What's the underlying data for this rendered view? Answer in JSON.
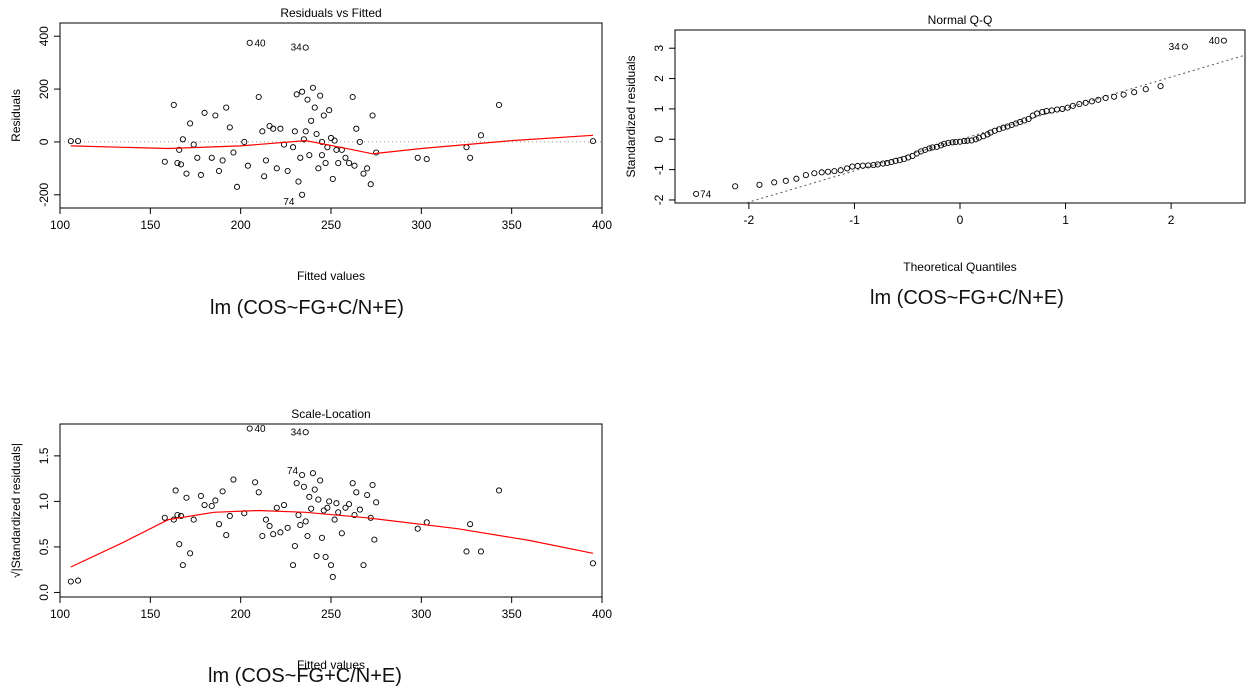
{
  "captions": [
    "lm (COS~FG+C/N+E)",
    "lm (COS~FG+C/N+E)",
    "lm (COS~FG+C/N+E)"
  ],
  "chart_data": [
    {
      "type": "scatter",
      "title": "Residuals vs Fitted",
      "xlabel": "Fitted values",
      "ylabel": "Residuals",
      "xlim": [
        100,
        400
      ],
      "ylim": [
        -250,
        450
      ],
      "xticks": [
        100,
        150,
        200,
        250,
        300,
        350,
        400
      ],
      "yticks": [
        -200,
        0,
        200,
        400
      ],
      "reference_line": {
        "y": 0,
        "style": "dotted",
        "color": "#999999"
      },
      "smooth_color": "#ff0000",
      "point_labels": [
        {
          "text": "40",
          "x": 206,
          "y": 375
        },
        {
          "text": "34",
          "x": 236,
          "y": 360
        },
        {
          "text": "74",
          "x": 232,
          "y": -225
        }
      ],
      "points": [
        [
          106,
          3
        ],
        [
          110,
          3
        ],
        [
          158,
          -75
        ],
        [
          163,
          140
        ],
        [
          165,
          -80
        ],
        [
          166,
          -30
        ],
        [
          167,
          -85
        ],
        [
          168,
          10
        ],
        [
          170,
          -120
        ],
        [
          172,
          70
        ],
        [
          174,
          -10
        ],
        [
          176,
          -60
        ],
        [
          178,
          -125
        ],
        [
          180,
          110
        ],
        [
          184,
          -60
        ],
        [
          186,
          100
        ],
        [
          188,
          -110
        ],
        [
          190,
          -70
        ],
        [
          192,
          130
        ],
        [
          194,
          55
        ],
        [
          196,
          -40
        ],
        [
          198,
          -170
        ],
        [
          202,
          0
        ],
        [
          204,
          -90
        ],
        [
          205,
          375
        ],
        [
          210,
          170
        ],
        [
          212,
          40
        ],
        [
          213,
          -130
        ],
        [
          214,
          -70
        ],
        [
          216,
          60
        ],
        [
          218,
          50
        ],
        [
          220,
          -100
        ],
        [
          222,
          50
        ],
        [
          224,
          -10
        ],
        [
          226,
          -110
        ],
        [
          229,
          -20
        ],
        [
          230,
          40
        ],
        [
          231,
          180
        ],
        [
          232,
          -150
        ],
        [
          233,
          -60
        ],
        [
          234,
          190
        ],
        [
          235,
          10
        ],
        [
          236,
          40
        ],
        [
          237,
          160
        ],
        [
          238,
          -50
        ],
        [
          239,
          80
        ],
        [
          240,
          205
        ],
        [
          241,
          130
        ],
        [
          242,
          30
        ],
        [
          243,
          -100
        ],
        [
          244,
          175
        ],
        [
          245,
          0
        ],
        [
          246,
          100
        ],
        [
          247,
          -80
        ],
        [
          248,
          -20
        ],
        [
          249,
          120
        ],
        [
          250,
          15
        ],
        [
          251,
          -140
        ],
        [
          252,
          5
        ],
        [
          253,
          -30
        ],
        [
          254,
          -80
        ],
        [
          256,
          -30
        ],
        [
          258,
          -60
        ],
        [
          260,
          -80
        ],
        [
          262,
          170
        ],
        [
          263,
          -90
        ],
        [
          264,
          50
        ],
        [
          266,
          0
        ],
        [
          268,
          -120
        ],
        [
          270,
          -100
        ],
        [
          272,
          -160
        ],
        [
          273,
          100
        ],
        [
          275,
          -40
        ],
        [
          298,
          -60
        ],
        [
          303,
          -65
        ],
        [
          325,
          -20
        ],
        [
          327,
          -60
        ],
        [
          333,
          25
        ],
        [
          343,
          140
        ],
        [
          395,
          3
        ],
        [
          236,
          357
        ],
        [
          234,
          -200
        ],
        [
          245,
          -50
        ]
      ],
      "smooth": [
        [
          106,
          -15
        ],
        [
          160,
          -25
        ],
        [
          200,
          -15
        ],
        [
          236,
          5
        ],
        [
          255,
          -20
        ],
        [
          273,
          -45
        ],
        [
          300,
          -25
        ],
        [
          350,
          5
        ],
        [
          395,
          25
        ]
      ]
    },
    {
      "type": "scatter",
      "title": "Normal Q-Q",
      "xlabel": "Theoretical Quantiles",
      "ylabel": "Standardized residuals",
      "xlim": [
        -2.7,
        2.7
      ],
      "ylim": [
        -2.1,
        3.6
      ],
      "xticks": [
        -2,
        -1,
        0,
        1,
        2
      ],
      "yticks": [
        -2,
        -1,
        0,
        1,
        2,
        3
      ],
      "reference_line": {
        "slope": 1.03,
        "intercept": -0.01,
        "style": "dotted",
        "color": "#555555"
      },
      "point_labels": [
        {
          "text": "74",
          "x": -2.5,
          "y": -1.8
        },
        {
          "text": "34",
          "x": 2.12,
          "y": 3.05
        },
        {
          "text": "40",
          "x": 2.5,
          "y": 3.25
        }
      ],
      "points": [
        [
          -2.5,
          -1.8
        ],
        [
          -2.13,
          -1.55
        ],
        [
          -1.9,
          -1.5
        ],
        [
          -1.76,
          -1.42
        ],
        [
          -1.65,
          -1.37
        ],
        [
          -1.55,
          -1.3
        ],
        [
          -1.46,
          -1.18
        ],
        [
          -1.38,
          -1.12
        ],
        [
          -1.31,
          -1.09
        ],
        [
          -1.25,
          -1.07
        ],
        [
          -1.19,
          -1.05
        ],
        [
          -1.13,
          -1.02
        ],
        [
          -1.07,
          -0.96
        ],
        [
          -1.02,
          -0.9
        ],
        [
          -0.97,
          -0.88
        ],
        [
          -0.92,
          -0.87
        ],
        [
          -0.87,
          -0.86
        ],
        [
          -0.82,
          -0.85
        ],
        [
          -0.78,
          -0.83
        ],
        [
          -0.73,
          -0.8
        ],
        [
          -0.69,
          -0.78
        ],
        [
          -0.65,
          -0.75
        ],
        [
          -0.61,
          -0.71
        ],
        [
          -0.57,
          -0.69
        ],
        [
          -0.53,
          -0.65
        ],
        [
          -0.49,
          -0.6
        ],
        [
          -0.45,
          -0.55
        ],
        [
          -0.41,
          -0.47
        ],
        [
          -0.37,
          -0.4
        ],
        [
          -0.33,
          -0.35
        ],
        [
          -0.29,
          -0.3
        ],
        [
          -0.26,
          -0.27
        ],
        [
          -0.22,
          -0.25
        ],
        [
          -0.18,
          -0.2
        ],
        [
          -0.15,
          -0.15
        ],
        [
          -0.11,
          -0.12
        ],
        [
          -0.07,
          -0.1
        ],
        [
          -0.04,
          -0.09
        ],
        [
          0.0,
          -0.08
        ],
        [
          0.04,
          -0.06
        ],
        [
          0.07,
          -0.05
        ],
        [
          0.11,
          -0.04
        ],
        [
          0.15,
          0.0
        ],
        [
          0.18,
          0.05
        ],
        [
          0.22,
          0.1
        ],
        [
          0.26,
          0.16
        ],
        [
          0.29,
          0.22
        ],
        [
          0.33,
          0.28
        ],
        [
          0.37,
          0.33
        ],
        [
          0.41,
          0.38
        ],
        [
          0.45,
          0.42
        ],
        [
          0.49,
          0.47
        ],
        [
          0.53,
          0.52
        ],
        [
          0.57,
          0.57
        ],
        [
          0.61,
          0.62
        ],
        [
          0.65,
          0.67
        ],
        [
          0.69,
          0.78
        ],
        [
          0.73,
          0.85
        ],
        [
          0.78,
          0.9
        ],
        [
          0.82,
          0.93
        ],
        [
          0.87,
          0.95
        ],
        [
          0.92,
          0.98
        ],
        [
          0.97,
          1.0
        ],
        [
          1.02,
          1.04
        ],
        [
          1.07,
          1.1
        ],
        [
          1.13,
          1.16
        ],
        [
          1.19,
          1.2
        ],
        [
          1.25,
          1.25
        ],
        [
          1.31,
          1.3
        ],
        [
          1.38,
          1.36
        ],
        [
          1.46,
          1.4
        ],
        [
          1.55,
          1.47
        ],
        [
          1.65,
          1.55
        ],
        [
          1.76,
          1.65
        ],
        [
          1.9,
          1.75
        ],
        [
          2.13,
          3.05
        ],
        [
          2.5,
          3.25
        ]
      ]
    },
    {
      "type": "scatter",
      "title": "Scale-Location",
      "xlabel": "Fitted values",
      "ylabel": "√|Standardized residuals|",
      "xlim": [
        100,
        400
      ],
      "ylim": [
        -0.05,
        1.85
      ],
      "xticks": [
        100,
        150,
        200,
        250,
        300,
        350,
        400
      ],
      "yticks": [
        0.0,
        0.5,
        1.0,
        1.5
      ],
      "smooth_color": "#ff0000",
      "point_labels": [
        {
          "text": "40",
          "x": 206,
          "y": 1.8
        },
        {
          "text": "34",
          "x": 236,
          "y": 1.76
        },
        {
          "text": "74",
          "x": 234,
          "y": 1.34
        }
      ],
      "points": [
        [
          106,
          0.12
        ],
        [
          110,
          0.13
        ],
        [
          158,
          0.82
        ],
        [
          163,
          0.8
        ],
        [
          164,
          1.12
        ],
        [
          165,
          0.85
        ],
        [
          166,
          0.53
        ],
        [
          167,
          0.84
        ],
        [
          168,
          0.3
        ],
        [
          170,
          1.04
        ],
        [
          172,
          0.43
        ],
        [
          174,
          0.8
        ],
        [
          178,
          1.06
        ],
        [
          180,
          0.96
        ],
        [
          184,
          0.95
        ],
        [
          186,
          1.01
        ],
        [
          188,
          0.75
        ],
        [
          190,
          1.11
        ],
        [
          192,
          0.63
        ],
        [
          194,
          0.84
        ],
        [
          196,
          1.24
        ],
        [
          202,
          0.87
        ],
        [
          205,
          1.8
        ],
        [
          208,
          1.21
        ],
        [
          210,
          1.1
        ],
        [
          212,
          0.62
        ],
        [
          214,
          0.8
        ],
        [
          216,
          0.73
        ],
        [
          218,
          0.64
        ],
        [
          220,
          0.93
        ],
        [
          222,
          0.66
        ],
        [
          224,
          0.96
        ],
        [
          226,
          0.71
        ],
        [
          229,
          0.3
        ],
        [
          230,
          0.51
        ],
        [
          231,
          1.2
        ],
        [
          232,
          0.85
        ],
        [
          233,
          0.74
        ],
        [
          234,
          1.29
        ],
        [
          235,
          1.16
        ],
        [
          236,
          0.78
        ],
        [
          237,
          0.62
        ],
        [
          238,
          1.05
        ],
        [
          239,
          0.92
        ],
        [
          240,
          1.31
        ],
        [
          241,
          1.13
        ],
        [
          242,
          0.4
        ],
        [
          243,
          1.02
        ],
        [
          244,
          1.23
        ],
        [
          245,
          0.6
        ],
        [
          246,
          0.9
        ],
        [
          247,
          0.39
        ],
        [
          248,
          0.93
        ],
        [
          249,
          1.0
        ],
        [
          250,
          0.3
        ],
        [
          251,
          0.17
        ],
        [
          252,
          0.8
        ],
        [
          253,
          0.98
        ],
        [
          254,
          0.88
        ],
        [
          256,
          0.65
        ],
        [
          258,
          0.93
        ],
        [
          260,
          0.97
        ],
        [
          262,
          1.2
        ],
        [
          263,
          0.85
        ],
        [
          264,
          1.1
        ],
        [
          266,
          0.91
        ],
        [
          268,
          0.3
        ],
        [
          270,
          1.07
        ],
        [
          272,
          0.82
        ],
        [
          273,
          1.18
        ],
        [
          274,
          0.58
        ],
        [
          275,
          0.99
        ],
        [
          298,
          0.7
        ],
        [
          303,
          0.77
        ],
        [
          325,
          0.45
        ],
        [
          327,
          0.75
        ],
        [
          333,
          0.45
        ],
        [
          343,
          1.12
        ],
        [
          395,
          0.32
        ],
        [
          236,
          1.76
        ]
      ],
      "smooth": [
        [
          106,
          0.28
        ],
        [
          135,
          0.55
        ],
        [
          160,
          0.8
        ],
        [
          185,
          0.88
        ],
        [
          210,
          0.9
        ],
        [
          236,
          0.88
        ],
        [
          270,
          0.82
        ],
        [
          320,
          0.7
        ],
        [
          360,
          0.57
        ],
        [
          395,
          0.43
        ]
      ]
    }
  ]
}
